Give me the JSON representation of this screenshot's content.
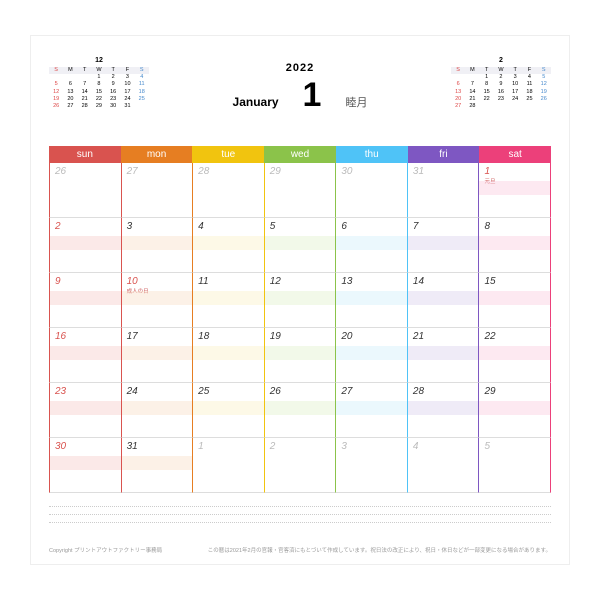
{
  "year": "2022",
  "month_en": "January",
  "month_num": "1",
  "month_jp": "睦月",
  "colors": {
    "sun": "#d9534f",
    "mon": "#e67e22",
    "tue": "#f1c40f",
    "wed": "#8bc34a",
    "thu": "#4fc3f7",
    "fri": "#7e57c2",
    "sat": "#ec407a"
  },
  "stripe_colors": {
    "sun": "#f6c7c5",
    "mon": "#f8dcc4",
    "tue": "#faf0c2",
    "wed": "#def0c7",
    "thu": "#cdeefb",
    "fri": "#d8ccec",
    "sat": "#f9c9dd"
  },
  "dow": [
    "sun",
    "mon",
    "tue",
    "wed",
    "thu",
    "fri",
    "sat"
  ],
  "weeks": [
    [
      {
        "n": "26",
        "o": 1
      },
      {
        "n": "27",
        "o": 1
      },
      {
        "n": "28",
        "o": 1
      },
      {
        "n": "29",
        "o": 1
      },
      {
        "n": "30",
        "o": 1
      },
      {
        "n": "31",
        "o": 1
      },
      {
        "n": "1",
        "h": "元旦",
        "red": 1
      }
    ],
    [
      {
        "n": "2",
        "red": 1
      },
      {
        "n": "3"
      },
      {
        "n": "4"
      },
      {
        "n": "5"
      },
      {
        "n": "6"
      },
      {
        "n": "7"
      },
      {
        "n": "8"
      }
    ],
    [
      {
        "n": "9",
        "red": 1
      },
      {
        "n": "10",
        "h": "成人の日",
        "red": 1
      },
      {
        "n": "11"
      },
      {
        "n": "12"
      },
      {
        "n": "13"
      },
      {
        "n": "14"
      },
      {
        "n": "15"
      }
    ],
    [
      {
        "n": "16",
        "red": 1
      },
      {
        "n": "17"
      },
      {
        "n": "18"
      },
      {
        "n": "19"
      },
      {
        "n": "20"
      },
      {
        "n": "21"
      },
      {
        "n": "22"
      }
    ],
    [
      {
        "n": "23",
        "red": 1
      },
      {
        "n": "24"
      },
      {
        "n": "25"
      },
      {
        "n": "26"
      },
      {
        "n": "27"
      },
      {
        "n": "28"
      },
      {
        "n": "29"
      }
    ],
    [
      {
        "n": "30",
        "red": 1
      },
      {
        "n": "31"
      },
      {
        "n": "1",
        "o": 1
      },
      {
        "n": "2",
        "o": 1
      },
      {
        "n": "3",
        "o": 1
      },
      {
        "n": "4",
        "o": 1
      },
      {
        "n": "5",
        "o": 1
      }
    ]
  ],
  "mini_prev": {
    "title": "12",
    "head": [
      "S",
      "M",
      "T",
      "W",
      "T",
      "F",
      "S"
    ],
    "rows": [
      [
        "",
        "",
        "",
        "1",
        "2",
        "3",
        "4"
      ],
      [
        "5",
        "6",
        "7",
        "8",
        "9",
        "10",
        "11"
      ],
      [
        "12",
        "13",
        "14",
        "15",
        "16",
        "17",
        "18"
      ],
      [
        "19",
        "20",
        "21",
        "22",
        "23",
        "24",
        "25"
      ],
      [
        "26",
        "27",
        "28",
        "29",
        "30",
        "31",
        ""
      ]
    ]
  },
  "mini_next": {
    "title": "2",
    "head": [
      "S",
      "M",
      "T",
      "W",
      "T",
      "F",
      "S"
    ],
    "rows": [
      [
        "",
        "",
        "1",
        "2",
        "3",
        "4",
        "5"
      ],
      [
        "6",
        "7",
        "8",
        "9",
        "10",
        "11",
        "12"
      ],
      [
        "13",
        "14",
        "15",
        "16",
        "17",
        "18",
        "19"
      ],
      [
        "20",
        "21",
        "22",
        "23",
        "24",
        "25",
        "26"
      ],
      [
        "27",
        "28",
        "",
        "",
        "",
        "",
        ""
      ]
    ]
  },
  "footer_left": "Copyright  プリントアウトファクトリー事務局",
  "footer_right": "この暦は2021年2月の官報・官客済にもとづいて作成しています。祝日法の改正により、祝日・休日などが一部変更になる場合があります。"
}
